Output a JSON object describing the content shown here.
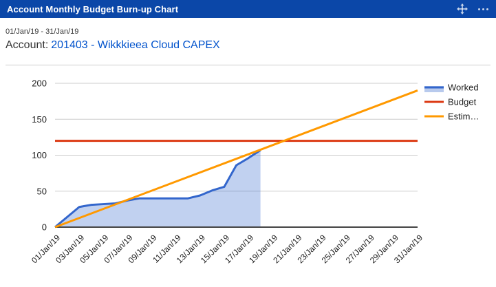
{
  "header": {
    "title": "Account Monthly Budget Burn-up Chart",
    "icons": [
      "move-icon",
      "more-options-icon"
    ]
  },
  "subheader": {
    "date_range": "01/Jan/19 - 31/Jan/19",
    "account_label": "Account:",
    "account_link": "201403 - Wikkkieea Cloud CAPEX"
  },
  "colors": {
    "header_bg": "#0b47a8",
    "link": "#0052cc",
    "grid": "#cccccc",
    "axis": "#444444",
    "tick_text": "#222222",
    "legend_text": "#222222"
  },
  "chart_data": {
    "type": "area",
    "title": "",
    "xlabel": "",
    "ylabel": "",
    "grid": "horizontal",
    "legend_position": "right",
    "x_domain": [
      1,
      31
    ],
    "ylim": [
      0,
      200
    ],
    "yticks": [
      0,
      50,
      100,
      150,
      200
    ],
    "categories": [
      "01/Jan/19",
      "03/Jan/19",
      "05/Jan/19",
      "07/Jan/19",
      "09/Jan/19",
      "11/Jan/19",
      "13/Jan/19",
      "15/Jan/19",
      "17/Jan/19",
      "19/Jan/19",
      "21/Jan/19",
      "23/Jan/19",
      "25/Jan/19",
      "27/Jan/19",
      "29/Jan/19",
      "31/Jan/19"
    ],
    "category_days": [
      1,
      3,
      5,
      7,
      9,
      11,
      13,
      15,
      17,
      19,
      21,
      23,
      25,
      27,
      29,
      31
    ],
    "series": [
      {
        "name": "Worked",
        "display": "Worked",
        "type": "area",
        "color": "#3366cc",
        "fill_opacity": 0.3,
        "days": [
          1,
          2,
          3,
          4,
          5,
          6,
          7,
          8,
          9,
          10,
          11,
          12,
          13,
          14,
          15,
          16,
          17,
          18
        ],
        "values": [
          0,
          14,
          28,
          31,
          32,
          33,
          37,
          40,
          40,
          40,
          40,
          40,
          44,
          51,
          56,
          86,
          96,
          107
        ]
      },
      {
        "name": "Budget",
        "display": "Budget",
        "type": "line",
        "color": "#dc3912",
        "days": [
          1,
          31
        ],
        "values": [
          120,
          120
        ]
      },
      {
        "name": "Estimated",
        "display": "Estim…",
        "type": "line",
        "color": "#ff9900",
        "days": [
          1,
          31
        ],
        "values": [
          0,
          190
        ]
      }
    ]
  }
}
